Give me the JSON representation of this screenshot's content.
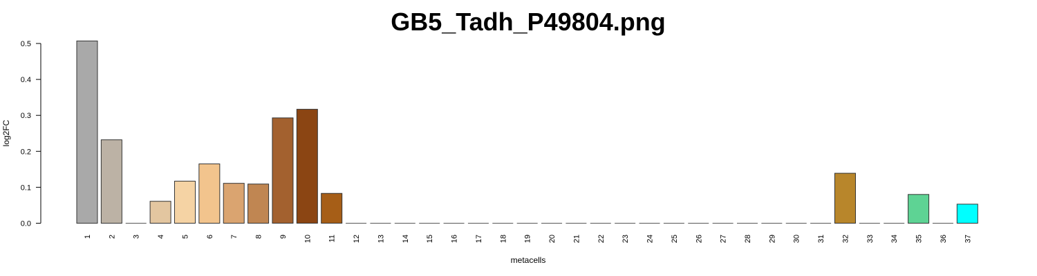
{
  "chart_data": {
    "type": "bar",
    "title": "GB5_Tadh_P49804.png",
    "xlabel": "metacells",
    "ylabel": "log2FC",
    "ylim": [
      0,
      0.5
    ],
    "yticks": [
      "0.0",
      "0.1",
      "0.2",
      "0.3",
      "0.4",
      "0.5"
    ],
    "grid": false,
    "legend": "none",
    "categories": [
      "1",
      "2",
      "3",
      "4",
      "5",
      "6",
      "7",
      "8",
      "9",
      "10",
      "11",
      "12",
      "13",
      "14",
      "15",
      "16",
      "17",
      "18",
      "19",
      "20",
      "21",
      "22",
      "23",
      "24",
      "25",
      "26",
      "27",
      "28",
      "29",
      "30",
      "31",
      "32",
      "33",
      "34",
      "35",
      "36",
      "37"
    ],
    "values": [
      0.507,
      0.232,
      0.0,
      0.061,
      0.117,
      0.165,
      0.111,
      0.109,
      0.293,
      0.317,
      0.083,
      0.0,
      0.0,
      0.0,
      0.0,
      0.0,
      0.0,
      0.0,
      0.0,
      0.0,
      0.0,
      0.0,
      0.0,
      0.0,
      0.0,
      0.0,
      0.0,
      0.0,
      0.0,
      0.0,
      0.0,
      0.139,
      0.0,
      0.0,
      0.08,
      0.0,
      0.053
    ],
    "colors": [
      "#a9a9a9",
      "#bcb2a5",
      "#d0c0a8",
      "#e3c6a0",
      "#f5d3a4",
      "#f2c48d",
      "#daa470",
      "#c08652",
      "#a3612f",
      "#8b4513",
      "#a65e17",
      "#8f7a5a",
      "#8f7a5a",
      "#8f7a5a",
      "#8f7a5a",
      "#8f7a5a",
      "#8f7a5a",
      "#8f7a5a",
      "#8f7a5a",
      "#8f7a5a",
      "#8f7a5a",
      "#8f7a5a",
      "#8f7a5a",
      "#8f7a5a",
      "#8f7a5a",
      "#8f7a5a",
      "#8f7a5a",
      "#8f7a5a",
      "#8f7a5a",
      "#8f7a5a",
      "#8f7a5a",
      "#b8862b",
      "#8f7a5a",
      "#8f7a5a",
      "#5ed394",
      "#8f7a5a",
      "#00ffff"
    ]
  }
}
